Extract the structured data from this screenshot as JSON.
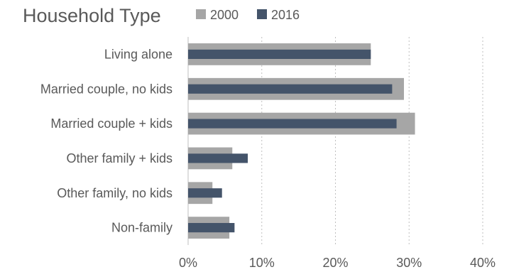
{
  "chart_data": {
    "type": "bar",
    "orientation": "horizontal",
    "title": "Household Type",
    "categories": [
      "Living alone",
      "Married couple, no kids",
      "Married couple + kids",
      "Other family + kids",
      "Other family, no kids",
      "Non-family"
    ],
    "series": [
      {
        "name": "2000",
        "color": "#a6a6a6",
        "values": [
          24.8,
          29.3,
          30.8,
          6.0,
          3.3,
          5.6
        ]
      },
      {
        "name": "2016",
        "color": "#44546a",
        "values": [
          24.8,
          27.7,
          28.3,
          8.1,
          4.6,
          6.3
        ]
      }
    ],
    "x_ticks": [
      "0%",
      "10%",
      "20%",
      "30%",
      "40%"
    ],
    "xlim": [
      0,
      40
    ],
    "xlabel": "",
    "ylabel": "",
    "grid": true,
    "legend_position": "top"
  }
}
